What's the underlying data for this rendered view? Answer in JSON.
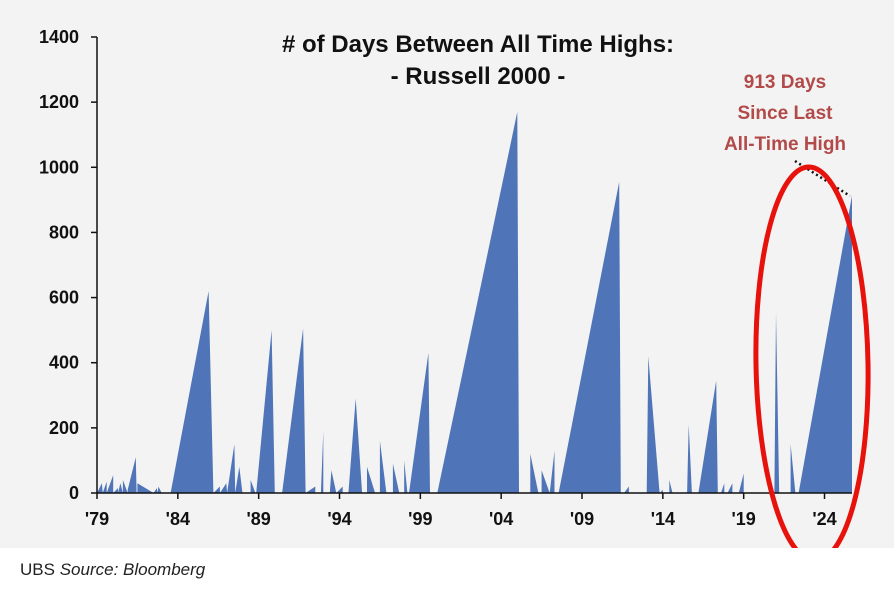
{
  "chart_data": {
    "type": "area",
    "title_line1": "# of Days Between All Time Highs:",
    "title_line2": "- Russell 2000 -",
    "xlabel": "",
    "ylabel": "",
    "x_range": [
      1979.0,
      2025.7
    ],
    "ylim": [
      0,
      1400
    ],
    "y_ticks": [
      "0",
      "200",
      "400",
      "600",
      "800",
      "1000",
      "1200",
      "1400"
    ],
    "x_ticks": [
      {
        "label": "'79",
        "year": 1979
      },
      {
        "label": "'84",
        "year": 1984
      },
      {
        "label": "'89",
        "year": 1989
      },
      {
        "label": "'94",
        "year": 1994
      },
      {
        "label": "'99",
        "year": 1999
      },
      {
        "label": "'04",
        "year": 2004
      },
      {
        "label": "'09",
        "year": 2009
      },
      {
        "label": "'14",
        "year": 2014
      },
      {
        "label": "'19",
        "year": 2019
      },
      {
        "label": "'24",
        "year": 2024
      }
    ],
    "grid": false,
    "legend": "none",
    "series": [
      {
        "color": "#4F75B8",
        "x": [
          1979.0,
          1979.3,
          1979.35,
          1979.6,
          1979.6,
          1980.0,
          1980.0,
          1980.3,
          1980.3,
          1980.45,
          1980.6,
          1980.6,
          1980.9,
          1980.9,
          1981.4,
          1981.45,
          1981.5,
          1981.5,
          1982.5,
          1982.7,
          1982.75,
          1982.8,
          1983.0,
          1983.0,
          1983.4,
          1983.4,
          1983.5,
          1983.55,
          1985.9,
          1986.2,
          1986.2,
          1986.6,
          1986.6,
          1987.0,
          1987.05,
          1987.5,
          1987.55,
          1987.8,
          1988.0,
          1988.0,
          1988.5,
          1988.5,
          1988.8,
          1988.85,
          1989.8,
          1990.0,
          1990.0,
          1990.45,
          1990.45,
          1991.75,
          1991.9,
          1991.9,
          1992.5,
          1992.5,
          1992.85,
          1993.0,
          1993.0,
          1993.4,
          1993.4,
          1993.5,
          1993.8,
          1993.8,
          1994.2,
          1994.2,
          1994.5,
          1994.55,
          1995.0,
          1995.4,
          1995.45,
          1995.7,
          1995.7,
          1996.2,
          1996.2,
          1996.5,
          1996.5,
          1996.9,
          1996.9,
          1997.3,
          1997.3,
          1997.7,
          1997.7,
          1998.0,
          1998.0,
          1998.2,
          1998.3,
          1998.3,
          1999.5,
          1999.6,
          1999.6,
          2000.0,
          2000.05,
          2005.0,
          2005.1,
          2005.5,
          2005.5,
          2005.8,
          2005.8,
          2006.3,
          2006.3,
          2006.5,
          2006.5,
          2007.0,
          2007.0,
          2007.3,
          2007.3,
          2007.5,
          2007.55,
          2011.3,
          2011.4,
          2011.6,
          2011.6,
          2011.9,
          2011.9,
          2012.0,
          2012.0,
          2013.0,
          2013.1,
          2013.8,
          2013.8,
          2014.0,
          2014.0,
          2014.4,
          2014.4,
          2014.6,
          2014.6,
          2015.0,
          2015.0,
          2015.5,
          2015.6,
          2015.8,
          2015.8,
          2016.0,
          2016.0,
          2016.1,
          2016.2,
          2017.3,
          2017.4,
          2017.6,
          2017.6,
          2017.8,
          2017.8,
          2018.0,
          2018.0,
          2018.3,
          2018.3,
          2018.5,
          2018.5,
          2018.7,
          2018.7,
          2019.0,
          2019.0,
          2019.2,
          2019.2,
          2020.9,
          2021.0,
          2021.2,
          2021.2,
          2021.9,
          2021.9,
          2022.2,
          2022.4,
          2025.7
        ],
        "y": [
          0,
          30,
          0,
          35,
          0,
          55,
          0,
          15,
          0,
          30,
          0,
          40,
          0,
          10,
          110,
          0,
          0,
          30,
          0,
          15,
          0,
          20,
          0,
          0,
          0,
          0,
          0,
          0,
          620,
          0,
          0,
          20,
          0,
          30,
          0,
          150,
          0,
          80,
          0,
          0,
          0,
          40,
          0,
          0,
          500,
          0,
          0,
          0,
          0,
          505,
          0,
          0,
          20,
          0,
          0,
          190,
          0,
          0,
          0,
          70,
          0,
          0,
          20,
          0,
          0,
          0,
          290,
          0,
          0,
          0,
          80,
          0,
          0,
          0,
          160,
          0,
          0,
          0,
          90,
          0,
          0,
          0,
          100,
          0,
          0,
          0,
          430,
          0,
          0,
          0,
          0,
          1170,
          0,
          0,
          0,
          0,
          120,
          0,
          0,
          0,
          70,
          0,
          0,
          130,
          0,
          0,
          0,
          955,
          0,
          0,
          0,
          20,
          0,
          0,
          0,
          0,
          420,
          0,
          0,
          10,
          0,
          0,
          40,
          0,
          0,
          0,
          0,
          0,
          210,
          0,
          0,
          0,
          0,
          0,
          0,
          345,
          0,
          0,
          0,
          30,
          0,
          0,
          0,
          30,
          0,
          0,
          0,
          0,
          0,
          60,
          0,
          0,
          0,
          0,
          555,
          0,
          0,
          0,
          150,
          0,
          0,
          913
        ]
      }
    ]
  },
  "annotation": {
    "line1": "913 Days",
    "line2": "Since Last",
    "line3": "All-Time High",
    "text_color": "#B34A4A",
    "circle_color": "#E8120C"
  },
  "footer": {
    "source_prefix": "UBS",
    "source_italic": "Source: Bloomberg"
  }
}
